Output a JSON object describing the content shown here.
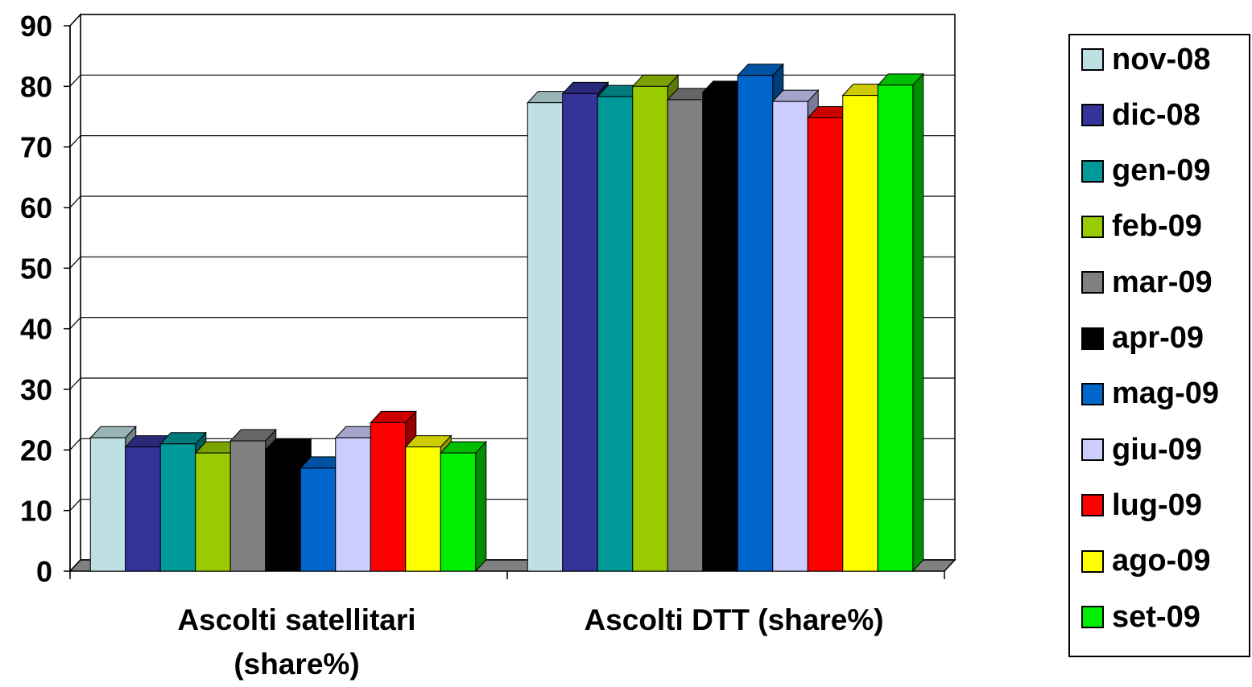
{
  "chart_data": {
    "type": "bar",
    "categories": [
      "Ascolti satellitari (share%)",
      "Ascolti DTT (share%)"
    ],
    "category_label_lines": [
      [
        "Ascolti satellitari",
        "(share%)"
      ],
      [
        "Ascolti DTT (share%)"
      ]
    ],
    "series": [
      {
        "name": "nov-08",
        "values": [
          22.0,
          77.3
        ],
        "color": "#BFE0E3"
      },
      {
        "name": "dic-08",
        "values": [
          20.5,
          78.8
        ],
        "color": "#333399"
      },
      {
        "name": "gen-09",
        "values": [
          21.0,
          78.3
        ],
        "color": "#009999"
      },
      {
        "name": "feb-09",
        "values": [
          19.5,
          80.0
        ],
        "color": "#99CC00"
      },
      {
        "name": "mar-09",
        "values": [
          21.5,
          77.8
        ],
        "color": "#808080"
      },
      {
        "name": "apr-09",
        "values": [
          20.0,
          79.0
        ],
        "color": "#000000"
      },
      {
        "name": "mag-09",
        "values": [
          17.0,
          81.8
        ],
        "color": "#0066CC"
      },
      {
        "name": "giu-09",
        "values": [
          22.0,
          77.5
        ],
        "color": "#CCCCFF"
      },
      {
        "name": "lug-09",
        "values": [
          24.5,
          74.8
        ],
        "color": "#FF0000"
      },
      {
        "name": "ago-09",
        "values": [
          20.5,
          78.5
        ],
        "color": "#FFFF00"
      },
      {
        "name": "set-09",
        "values": [
          19.5,
          80.2
        ],
        "color": "#00EE00"
      }
    ],
    "y_ticks": [
      "0",
      "10",
      "20",
      "30",
      "40",
      "50",
      "60",
      "70",
      "80",
      "90"
    ],
    "ylim": [
      0,
      90
    ],
    "grid": true,
    "legend_position": "right",
    "style": "3d-clustered-column"
  }
}
